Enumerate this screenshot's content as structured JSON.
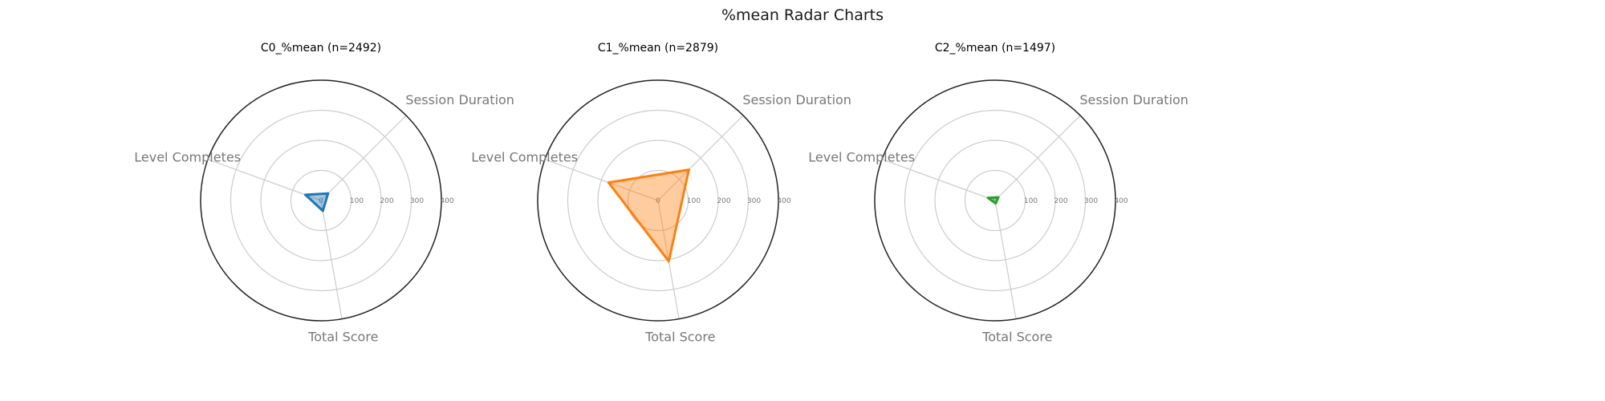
{
  "title": "%mean Radar Charts",
  "chart_data": [
    {
      "type": "radar",
      "title": "C0_%mean (n=2492)",
      "color": "#1f77b4",
      "axes": [
        "Session Duration",
        "Level Completes",
        "Total Score"
      ],
      "values": [
        33,
        55,
        35
      ],
      "rlim": [
        0,
        400
      ],
      "r_ticks": [
        "0",
        "100",
        "200",
        "300",
        "400"
      ],
      "grid": true
    },
    {
      "type": "radar",
      "title": "C1_%mean (n=2879)",
      "color": "#ff7f0e",
      "axes": [
        "Session Duration",
        "Level Completes",
        "Total Score"
      ],
      "values": [
        145,
        175,
        205
      ],
      "rlim": [
        0,
        400
      ],
      "r_ticks": [
        "0",
        "100",
        "200",
        "300",
        "400"
      ],
      "grid": true
    },
    {
      "type": "radar",
      "title": "C2_%mean (n=1497)",
      "color": "#2ca02c",
      "axes": [
        "Session Duration",
        "Level Completes",
        "Total Score"
      ],
      "values": [
        15,
        25,
        10
      ],
      "rlim": [
        0,
        400
      ],
      "r_ticks": [
        "0",
        "100",
        "200",
        "300",
        "400"
      ],
      "grid": true
    }
  ]
}
